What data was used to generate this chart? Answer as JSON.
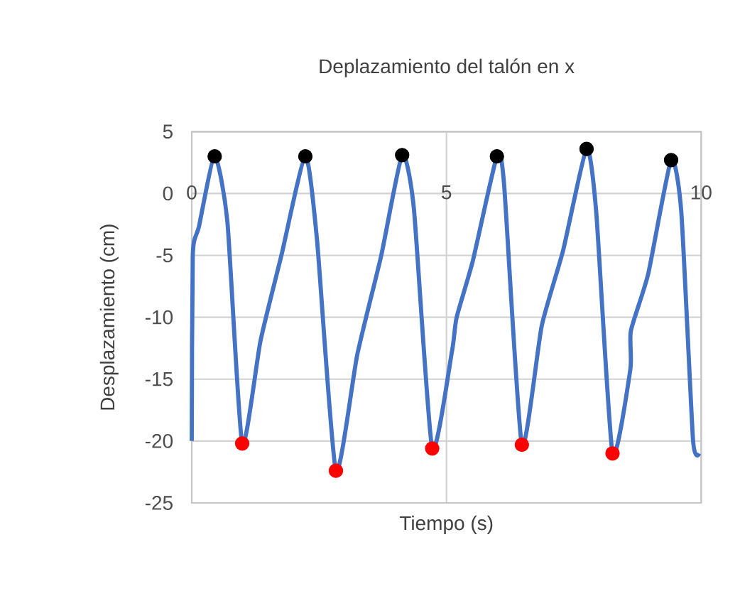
{
  "chart_data": {
    "type": "line",
    "title": "Deplazamiento del talón en x",
    "xlabel": "Tiempo (s)",
    "ylabel": "Desplazamiento (cm)",
    "xlim": [
      0,
      10
    ],
    "ylim": [
      -25,
      5
    ],
    "xticks": [
      0,
      5,
      10
    ],
    "yticks": [
      5,
      0,
      -5,
      -10,
      -15,
      -20,
      -25
    ],
    "grid": true,
    "marker": "none",
    "series": [
      {
        "color": "#4472c4",
        "x": [
          0,
          0.02,
          0.14,
          0.45,
          0.7,
          0.99,
          1.35,
          1.76,
          2.23,
          2.46,
          2.83,
          3.25,
          3.72,
          4.13,
          4.36,
          4.72,
          5.11,
          5.2,
          5.52,
          5.99,
          6.13,
          6.48,
          6.87,
          7.29,
          7.75,
          7.94,
          8.26,
          8.61,
          8.62,
          8.96,
          9.41,
          9.61,
          9.84,
          9.96
        ],
        "values": [
          -20,
          -5,
          -2.7,
          3,
          -2.3,
          -20.2,
          -11.9,
          -5,
          3,
          -3.8,
          -22.4,
          -13,
          -5,
          3.1,
          -1.2,
          -20.6,
          -12.7,
          -10,
          -5.4,
          3,
          0.8,
          -20.3,
          -10.7,
          -4.6,
          3.6,
          -1.5,
          -21,
          -14.2,
          -11.1,
          -6.5,
          2.7,
          -1.5,
          -19.9,
          -21
        ]
      },
      {
        "type": "scatter",
        "color": "#000000",
        "marker": "circle",
        "x": [
          0.45,
          2.23,
          4.13,
          5.99,
          7.75,
          9.41
        ],
        "values": [
          3,
          3,
          3.1,
          3,
          3.6,
          2.7
        ]
      },
      {
        "type": "scatter",
        "color": "#ff0000",
        "marker": "circle",
        "x": [
          0.99,
          2.83,
          4.72,
          6.48,
          8.26
        ],
        "values": [
          -20.2,
          -22.4,
          -20.6,
          -20.3,
          -21
        ]
      }
    ]
  }
}
